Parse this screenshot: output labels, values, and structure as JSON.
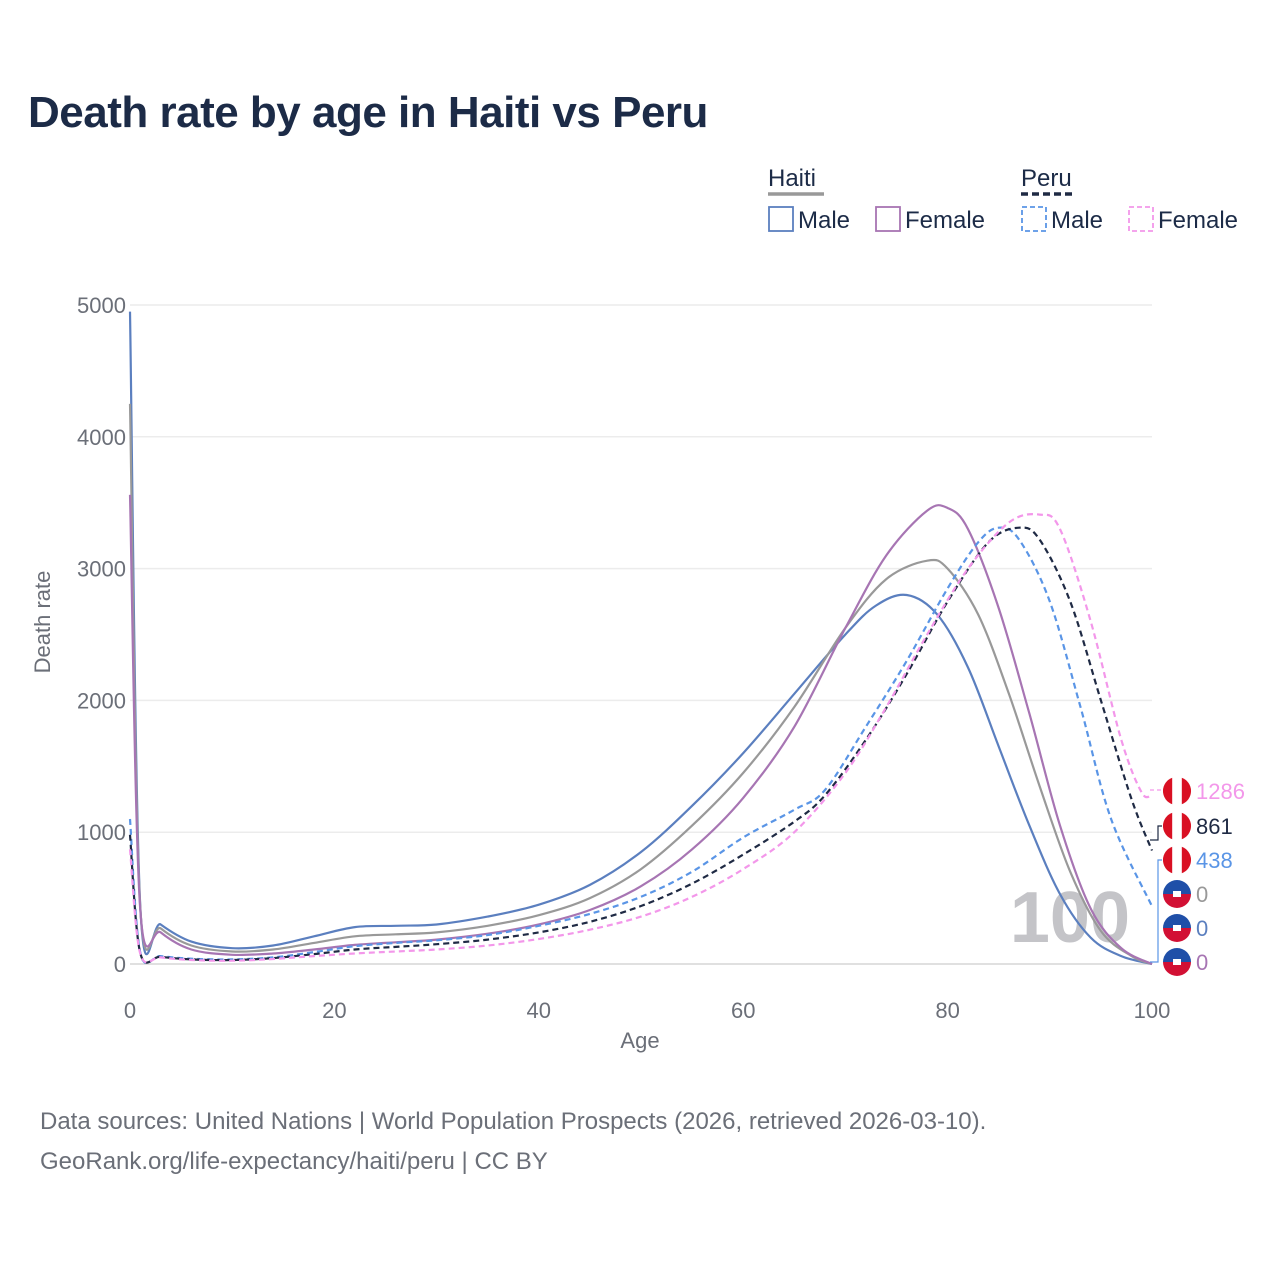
{
  "title": "Death rate by age in Haiti vs Peru",
  "source_line": "Data sources: United Nations | World Population Prospects (2026, retrieved 2026-03-10).",
  "credit_line": "GeoRank.org/life-expectancy/haiti/peru | CC BY",
  "legend": {
    "groups": [
      {
        "name": "Haiti",
        "line_color": "#999999",
        "dashed": false
      },
      {
        "name": "Peru",
        "line_color": "#1f2a44",
        "dashed": true
      }
    ],
    "entries": [
      {
        "label": "Male",
        "group": "Haiti",
        "color": "#5b7fbf",
        "dashed": false
      },
      {
        "label": "Female",
        "group": "Haiti",
        "color": "#a775b3",
        "dashed": false
      },
      {
        "label": "Male",
        "group": "Peru",
        "color": "#5a95e6",
        "dashed": true
      },
      {
        "label": "Female",
        "group": "Peru",
        "color": "#f397ea",
        "dashed": true
      }
    ]
  },
  "watermark": "100",
  "chart_data": {
    "type": "line",
    "xlabel": "Age",
    "ylabel": "Death rate",
    "xlim": [
      0,
      100
    ],
    "ylim": [
      0,
      5000
    ],
    "xticks": [
      0,
      20,
      40,
      60,
      80,
      100
    ],
    "yticks": [
      0,
      1000,
      2000,
      3000,
      4000,
      5000
    ],
    "grid": true,
    "series": [
      {
        "name": "Haiti Male",
        "color": "#5b7fbf",
        "dashed": false,
        "x": [
          0,
          1,
          3,
          6,
          10,
          14,
          18,
          22,
          26,
          30,
          35,
          40,
          45,
          50,
          55,
          60,
          65,
          70,
          73,
          76,
          79,
          82,
          85,
          88,
          91,
          94,
          97,
          100
        ],
        "y": [
          4950,
          450,
          300,
          170,
          120,
          140,
          210,
          280,
          290,
          300,
          360,
          450,
          600,
          850,
          1200,
          1600,
          2050,
          2500,
          2720,
          2800,
          2650,
          2250,
          1650,
          1050,
          530,
          200,
          60,
          0
        ]
      },
      {
        "name": "Haiti Total",
        "color": "#999999",
        "dashed": false,
        "x": [
          0,
          1,
          3,
          6,
          10,
          14,
          18,
          22,
          26,
          30,
          35,
          40,
          45,
          50,
          55,
          60,
          65,
          70,
          74,
          78,
          80,
          83,
          86,
          89,
          92,
          95,
          98,
          100
        ],
        "y": [
          4250,
          440,
          270,
          140,
          95,
          110,
          160,
          210,
          225,
          240,
          290,
          370,
          500,
          720,
          1050,
          1450,
          1950,
          2550,
          2920,
          3060,
          3000,
          2650,
          2050,
          1350,
          700,
          250,
          60,
          0
        ]
      },
      {
        "name": "Haiti Female",
        "color": "#a775b3",
        "dashed": false,
        "x": [
          0,
          1,
          3,
          6,
          10,
          14,
          18,
          22,
          26,
          30,
          35,
          40,
          45,
          50,
          55,
          60,
          65,
          70,
          74,
          78,
          80,
          82,
          85,
          88,
          91,
          94,
          97,
          100
        ],
        "y": [
          3560,
          420,
          240,
          110,
          70,
          80,
          110,
          145,
          165,
          185,
          230,
          300,
          410,
          590,
          870,
          1260,
          1800,
          2550,
          3100,
          3440,
          3460,
          3300,
          2700,
          1900,
          1050,
          420,
          120,
          0
        ]
      },
      {
        "name": "Peru Male",
        "color": "#5a95e6",
        "dashed": true,
        "x": [
          0,
          1,
          3,
          6,
          10,
          14,
          18,
          22,
          26,
          30,
          35,
          40,
          45,
          50,
          55,
          60,
          65,
          68,
          72,
          76,
          80,
          83,
          85,
          87,
          90,
          93,
          96,
          100
        ],
        "y": [
          1100,
          90,
          60,
          40,
          35,
          50,
          90,
          135,
          160,
          180,
          220,
          290,
          380,
          510,
          700,
          960,
          1170,
          1320,
          1800,
          2300,
          2850,
          3200,
          3310,
          3220,
          2750,
          1950,
          1100,
          438
        ]
      },
      {
        "name": "Peru Total",
        "color": "#1f2a44",
        "dashed": true,
        "x": [
          0,
          1,
          3,
          6,
          10,
          14,
          18,
          22,
          26,
          30,
          35,
          40,
          45,
          50,
          55,
          60,
          65,
          68,
          72,
          76,
          80,
          84,
          87,
          89,
          92,
          95,
          98,
          100
        ],
        "y": [
          980,
          85,
          55,
          35,
          30,
          45,
          75,
          110,
          130,
          150,
          185,
          240,
          320,
          440,
          610,
          830,
          1080,
          1280,
          1700,
          2200,
          2750,
          3200,
          3310,
          3220,
          2750,
          2000,
          1250,
          861
        ]
      },
      {
        "name": "Peru Female",
        "color": "#f397ea",
        "dashed": true,
        "x": [
          0,
          1,
          3,
          6,
          10,
          14,
          18,
          22,
          26,
          30,
          35,
          40,
          45,
          50,
          55,
          60,
          65,
          70,
          74,
          78,
          82,
          86,
          89,
          91,
          94,
          97,
          99,
          100
        ],
        "y": [
          870,
          80,
          50,
          30,
          25,
          38,
          60,
          80,
          95,
          110,
          140,
          190,
          260,
          360,
          510,
          720,
          1000,
          1450,
          1950,
          2500,
          3000,
          3350,
          3410,
          3300,
          2600,
          1700,
          1300,
          1286
        ]
      }
    ],
    "end_labels": [
      {
        "value": "1286",
        "country": "Peru",
        "color": "#f397ea"
      },
      {
        "value": "861",
        "country": "Peru",
        "color": "#1f2a44"
      },
      {
        "value": "438",
        "country": "Peru",
        "color": "#5a95e6"
      },
      {
        "value": "0",
        "country": "Haiti",
        "color": "#999999"
      },
      {
        "value": "0",
        "country": "Haiti",
        "color": "#5b7fbf"
      },
      {
        "value": "0",
        "country": "Haiti",
        "color": "#a775b3"
      }
    ]
  }
}
